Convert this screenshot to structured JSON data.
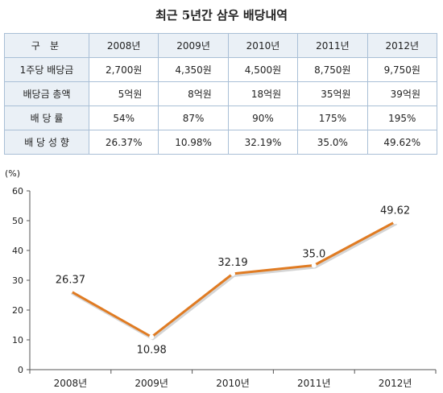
{
  "title": "최근 5년간 삼우 배당내역",
  "table": {
    "header": [
      "구 분",
      "2008년",
      "2009년",
      "2010년",
      "2011년",
      "2012년"
    ],
    "rows": [
      {
        "label": "1주당 배당금",
        "values": [
          "2,700원",
          "4,350원",
          "4,500원",
          "8,750원",
          "9,750원"
        ]
      },
      {
        "label": "배당금 총액",
        "values": [
          "5억원",
          "8억원",
          "18억원",
          "35억원",
          "39억원"
        ]
      },
      {
        "label": "배 당 률",
        "values": [
          "54%",
          "87%",
          "90%",
          "175%",
          "195%"
        ]
      },
      {
        "label": "배 당 성 향",
        "values": [
          "26.37%",
          "10.98%",
          "32.19%",
          "35.0%",
          "49.62%"
        ]
      }
    ]
  },
  "chart_data": {
    "type": "line",
    "title": "",
    "ylabel": "(%)",
    "xlabel": "",
    "categories": [
      "2008년",
      "2009년",
      "2010년",
      "2011년",
      "2012년"
    ],
    "series": [
      {
        "values": [
          26.37,
          10.98,
          32.19,
          35.0,
          49.62
        ],
        "labels": [
          "26.37",
          "10.98",
          "32.19",
          "35.0",
          "49.62"
        ],
        "color": "#e07b22"
      }
    ],
    "ylim": [
      0,
      60
    ],
    "yticks": [
      0,
      10,
      20,
      30,
      40,
      50,
      60
    ],
    "grid": false,
    "legend": "none"
  }
}
